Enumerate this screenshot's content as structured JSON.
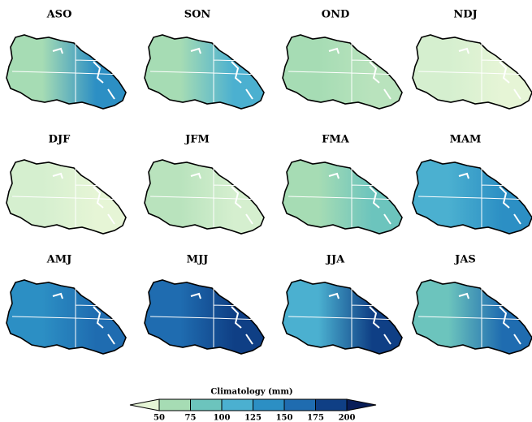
{
  "panels": [
    {
      "title": "ASO",
      "colors": [
        "#a6dcb4",
        "#2c8fc4"
      ]
    },
    {
      "title": "SON",
      "colors": [
        "#a6dcb4",
        "#4bb0d0"
      ]
    },
    {
      "title": "OND",
      "colors": [
        "#a6dcb4",
        "#b9e3bd"
      ]
    },
    {
      "title": "NDJ",
      "colors": [
        "#d5efcf",
        "#e6f5d6"
      ]
    },
    {
      "title": "DJF",
      "colors": [
        "#d5efcf",
        "#e6f5d6"
      ]
    },
    {
      "title": "JFM",
      "colors": [
        "#b9e3bd",
        "#d5efcf"
      ]
    },
    {
      "title": "FMA",
      "colors": [
        "#a6dcb4",
        "#6cc4bd"
      ]
    },
    {
      "title": "MAM",
      "colors": [
        "#4bb0d0",
        "#2c8fc4"
      ]
    },
    {
      "title": "AMJ",
      "colors": [
        "#2c8fc4",
        "#1f6cb0"
      ]
    },
    {
      "title": "MJJ",
      "colors": [
        "#1f6cb0",
        "#0f3f85"
      ]
    },
    {
      "title": "JJA",
      "colors": [
        "#4bb0d0",
        "#0f3f85"
      ]
    },
    {
      "title": "JAS",
      "colors": [
        "#6cc4bd",
        "#1f6cb0"
      ]
    }
  ],
  "colorbar": {
    "title": "Climatology (mm)",
    "ticks": [
      50,
      75,
      100,
      125,
      150,
      175,
      200
    ],
    "colors": [
      "#e6f5d6",
      "#a6dcb4",
      "#6cc4bd",
      "#4bb0d0",
      "#2c8fc4",
      "#1f6cb0",
      "#0f3f85",
      "#081d58"
    ]
  }
}
